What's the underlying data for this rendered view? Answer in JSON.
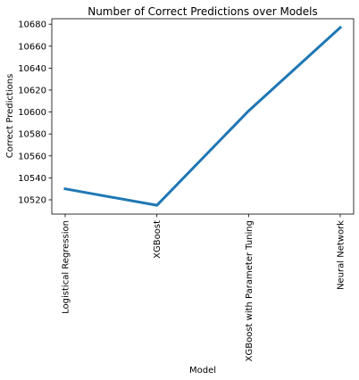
{
  "chart_data": {
    "type": "line",
    "title": "Number of Correct Predictions over Models",
    "xlabel": "Model",
    "ylabel": "Correct Predictions",
    "categories": [
      "Logistical Regression",
      "XGBoost",
      "XGBoost with Parameter Tuning",
      "Neural Network"
    ],
    "series": [
      {
        "values": [
          10530,
          10515,
          10601,
          10677
        ]
      }
    ],
    "ylim": [
      10507,
      10685
    ],
    "yticks": [
      10520,
      10540,
      10560,
      10580,
      10600,
      10620,
      10640,
      10660,
      10680
    ],
    "grid": false,
    "legend": "none",
    "line_color": "#1f77b4"
  }
}
